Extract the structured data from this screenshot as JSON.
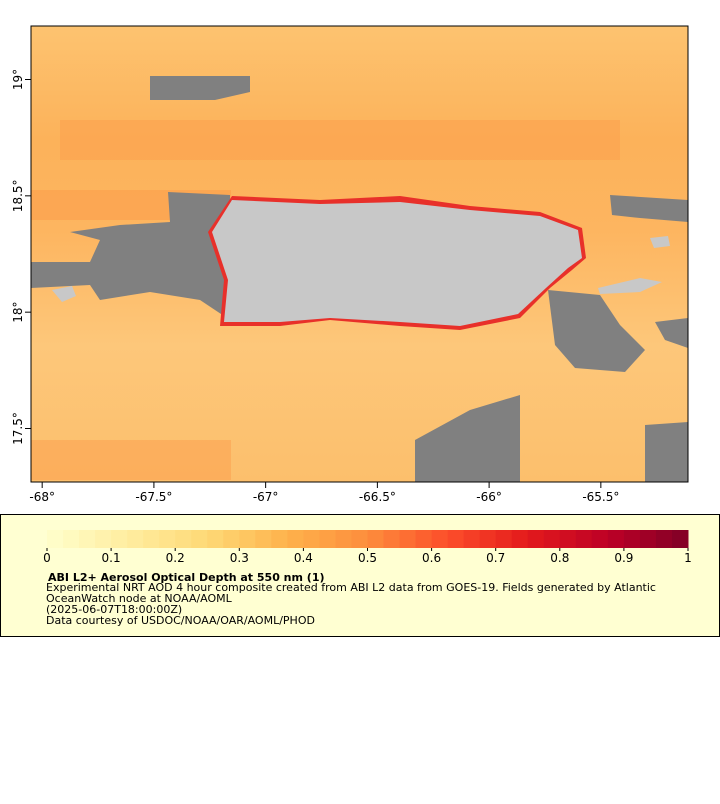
{
  "chart_data": {
    "type": "map",
    "xlim": [
      -68.05,
      -65.11
    ],
    "ylim": [
      17.27,
      19.23
    ],
    "xticks": [
      {
        "value": -68,
        "label": "-68°"
      },
      {
        "value": -67.5,
        "label": "-67.5°"
      },
      {
        "value": -67,
        "label": "-67°"
      },
      {
        "value": -66.5,
        "label": "-66.5°"
      },
      {
        "value": -66,
        "label": "-66°"
      },
      {
        "value": -65.5,
        "label": "-65.5°"
      }
    ],
    "yticks": [
      {
        "value": 17.5,
        "label": "17.5°"
      },
      {
        "value": 18,
        "label": "18°"
      },
      {
        "value": 18.5,
        "label": "18.5°"
      },
      {
        "value": 19,
        "label": "19°"
      }
    ],
    "colorbar": {
      "range": [
        0,
        1
      ],
      "ticks": [
        0,
        0.1,
        0.2,
        0.3,
        0.4,
        0.5,
        0.6,
        0.7,
        0.8,
        0.9,
        1
      ],
      "colors": [
        "#ffffcc",
        "#ffeda0",
        "#fed976",
        "#feb24c",
        "#fd8d3c",
        "#fc4e2a",
        "#e31a1c",
        "#bd0026",
        "#800026"
      ]
    },
    "title": "ABI L2+ Aerosol Optical Depth at 550 nm (1)",
    "description": "Experimental NRT AOD 4 hour composite created from ABI L2 data from GOES-19. Fields generated by Atlantic OceanWatch node at NOAA/AOML",
    "time": "(2025-06-07T18:00:00Z)",
    "credit": "Data courtesy of USDOC/NOAA/OAR/AOML/PHOD"
  }
}
